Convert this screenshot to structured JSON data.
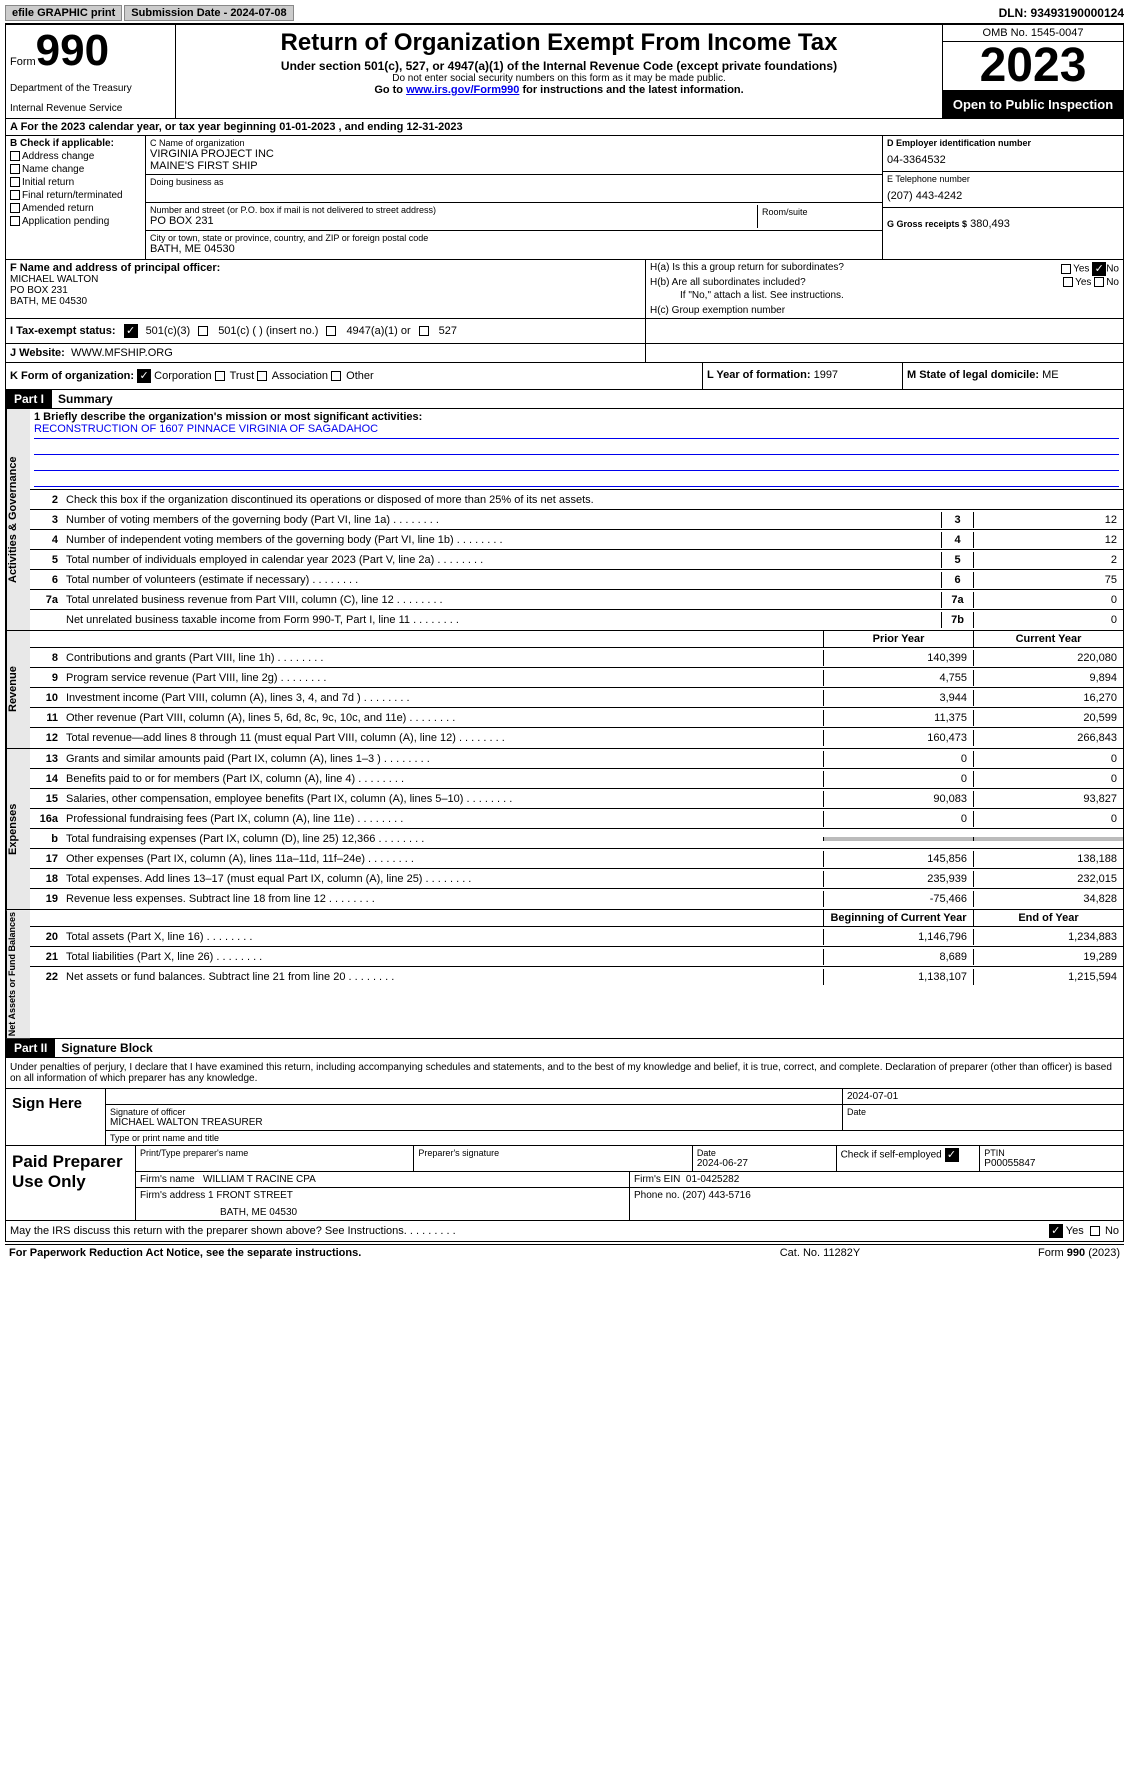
{
  "colors": {
    "black": "#000000",
    "white": "#ffffff",
    "link": "#0000ee",
    "shade": "#bbbbbb",
    "tab_bg": "#e8e8e8",
    "btn_bg": "#cccccc"
  },
  "top": {
    "efile": "efile GRAPHIC print",
    "sub_label": "Submission Date - 2024-07-08",
    "dln": "DLN: 93493190000124"
  },
  "header": {
    "form_word": "Form",
    "form_number": "990",
    "dept": "Department of the Treasury",
    "irs": "Internal Revenue Service",
    "title": "Return of Organization Exempt From Income Tax",
    "subtitle": "Under section 501(c), 527, or 4947(a)(1) of the Internal Revenue Code (except private foundations)",
    "note1": "Do not enter social security numbers on this form as it may be made public.",
    "note2_pre": "Go to ",
    "note2_link": "www.irs.gov/Form990",
    "note2_post": " for instructions and the latest information.",
    "omb": "OMB No. 1545-0047",
    "year": "2023",
    "open": "Open to Public Inspection"
  },
  "rowA": "A  For the 2023 calendar year, or tax year beginning 01-01-2023   , and ending 12-31-2023",
  "boxB": {
    "label": "B Check if applicable:",
    "items": [
      "Address change",
      "Name change",
      "Initial return",
      "Final return/terminated",
      "Amended return",
      "Application pending"
    ]
  },
  "boxC": {
    "name_lbl": "C Name of organization",
    "name1": "VIRGINIA PROJECT INC",
    "name2": "MAINE'S FIRST SHIP",
    "dba_lbl": "Doing business as",
    "addr_lbl": "Number and street (or P.O. box if mail is not delivered to street address)",
    "addr": "PO BOX 231",
    "room_lbl": "Room/suite",
    "city_lbl": "City or town, state or province, country, and ZIP or foreign postal code",
    "city": "BATH, ME  04530"
  },
  "boxD": {
    "ein_lbl": "D Employer identification number",
    "ein": "04-3364532",
    "phone_lbl": "E Telephone number",
    "phone": "(207) 443-4242",
    "gross_lbl": "G Gross receipts $",
    "gross": "380,493"
  },
  "boxF": {
    "lbl": "F  Name and address of principal officer:",
    "name": "MICHAEL WALTON",
    "addr1": "PO BOX 231",
    "addr2": "BATH, ME  04530"
  },
  "boxH": {
    "ha": "H(a)  Is this a group return for subordinates?",
    "hb": "H(b)  Are all subordinates included?",
    "hb_note": "If \"No,\" attach a list. See instructions.",
    "hc": "H(c)  Group exemption number",
    "yes": "Yes",
    "no": "No"
  },
  "rowI": {
    "lbl": "I   Tax-exempt status:",
    "opts": [
      "501(c)(3)",
      "501(c) (  ) (insert no.)",
      "4947(a)(1) or",
      "527"
    ]
  },
  "rowJ": {
    "lbl": "J   Website:",
    "val": "WWW.MFSHIP.ORG"
  },
  "rowK": {
    "lbl": "K Form of organization:",
    "opts": [
      "Corporation",
      "Trust",
      "Association",
      "Other"
    ],
    "year_lbl": "L Year of formation:",
    "year": "1997",
    "state_lbl": "M State of legal domicile:",
    "state": "ME"
  },
  "partI": {
    "num": "Part I",
    "title": "Summary"
  },
  "mission": {
    "lbl": "1   Briefly describe the organization's mission or most significant activities:",
    "text": "RECONSTRUCTION OF 1607 PINNACE VIRGINIA OF SAGADAHOC"
  },
  "gov": {
    "tab": "Activities & Governance",
    "line2": "Check this box        if the organization discontinued its operations or disposed of more than 25% of its net assets.",
    "rows": [
      {
        "n": "3",
        "d": "Number of voting members of the governing body (Part VI, line 1a)",
        "b": "3",
        "v": "12"
      },
      {
        "n": "4",
        "d": "Number of independent voting members of the governing body (Part VI, line 1b)",
        "b": "4",
        "v": "12"
      },
      {
        "n": "5",
        "d": "Total number of individuals employed in calendar year 2023 (Part V, line 2a)",
        "b": "5",
        "v": "2"
      },
      {
        "n": "6",
        "d": "Total number of volunteers (estimate if necessary)",
        "b": "6",
        "v": "75"
      },
      {
        "n": "7a",
        "d": "Total unrelated business revenue from Part VIII, column (C), line 12",
        "b": "7a",
        "v": "0"
      },
      {
        "n": "",
        "d": "Net unrelated business taxable income from Form 990-T, Part I, line 11",
        "b": "7b",
        "v": "0"
      }
    ]
  },
  "rev": {
    "tab": "Revenue",
    "hdr_prior": "Prior Year",
    "hdr_curr": "Current Year",
    "rows": [
      {
        "n": "8",
        "d": "Contributions and grants (Part VIII, line 1h)",
        "p": "140,399",
        "c": "220,080"
      },
      {
        "n": "9",
        "d": "Program service revenue (Part VIII, line 2g)",
        "p": "4,755",
        "c": "9,894"
      },
      {
        "n": "10",
        "d": "Investment income (Part VIII, column (A), lines 3, 4, and 7d )",
        "p": "3,944",
        "c": "16,270"
      },
      {
        "n": "11",
        "d": "Other revenue (Part VIII, column (A), lines 5, 6d, 8c, 9c, 10c, and 11e)",
        "p": "11,375",
        "c": "20,599"
      },
      {
        "n": "12",
        "d": "Total revenue—add lines 8 through 11 (must equal Part VIII, column (A), line 12)",
        "p": "160,473",
        "c": "266,843"
      }
    ]
  },
  "exp": {
    "tab": "Expenses",
    "rows": [
      {
        "n": "13",
        "d": "Grants and similar amounts paid (Part IX, column (A), lines 1–3 )",
        "p": "0",
        "c": "0"
      },
      {
        "n": "14",
        "d": "Benefits paid to or for members (Part IX, column (A), line 4)",
        "p": "0",
        "c": "0"
      },
      {
        "n": "15",
        "d": "Salaries, other compensation, employee benefits (Part IX, column (A), lines 5–10)",
        "p": "90,083",
        "c": "93,827"
      },
      {
        "n": "16a",
        "d": "Professional fundraising fees (Part IX, column (A), line 11e)",
        "p": "0",
        "c": "0"
      },
      {
        "n": "b",
        "d": "Total fundraising expenses (Part IX, column (D), line 25) 12,366",
        "p": "",
        "c": "",
        "shade": true
      },
      {
        "n": "17",
        "d": "Other expenses (Part IX, column (A), lines 11a–11d, 11f–24e)",
        "p": "145,856",
        "c": "138,188"
      },
      {
        "n": "18",
        "d": "Total expenses. Add lines 13–17 (must equal Part IX, column (A), line 25)",
        "p": "235,939",
        "c": "232,015"
      },
      {
        "n": "19",
        "d": "Revenue less expenses. Subtract line 18 from line 12",
        "p": "-75,466",
        "c": "34,828"
      }
    ]
  },
  "net": {
    "tab": "Net Assets or Fund Balances",
    "hdr_beg": "Beginning of Current Year",
    "hdr_end": "End of Year",
    "rows": [
      {
        "n": "20",
        "d": "Total assets (Part X, line 16)",
        "p": "1,146,796",
        "c": "1,234,883"
      },
      {
        "n": "21",
        "d": "Total liabilities (Part X, line 26)",
        "p": "8,689",
        "c": "19,289"
      },
      {
        "n": "22",
        "d": "Net assets or fund balances. Subtract line 21 from line 20",
        "p": "1,138,107",
        "c": "1,215,594"
      }
    ]
  },
  "partII": {
    "num": "Part II",
    "title": "Signature Block"
  },
  "sig": {
    "intro": "Under penalties of perjury, I declare that I have examined this return, including accompanying schedules and statements, and to the best of my knowledge and belief, it is true, correct, and complete. Declaration of preparer (other than officer) is based on all information of which preparer has any knowledge.",
    "here": "Sign Here",
    "date": "2024-07-01",
    "sig_lbl": "Signature of officer",
    "name": "MICHAEL WALTON  TREASURER",
    "name_lbl": "Type or print name and title",
    "date_lbl": "Date"
  },
  "prep": {
    "label": "Paid Preparer Use Only",
    "name_lbl": "Print/Type preparer's name",
    "sig_lbl": "Preparer's signature",
    "date_lbl": "Date",
    "date": "2024-06-27",
    "check_lbl": "Check         if self-employed",
    "ptin_lbl": "PTIN",
    "ptin": "P00055847",
    "firm_lbl": "Firm's name",
    "firm": "WILLIAM T RACINE CPA",
    "ein_lbl": "Firm's EIN",
    "ein": "01-0425282",
    "addr_lbl": "Firm's address",
    "addr1": "1 FRONT STREET",
    "addr2": "BATH, ME  04530",
    "phone_lbl": "Phone no.",
    "phone": "(207) 443-5716"
  },
  "discuss": {
    "text": "May the IRS discuss this return with the preparer shown above? See Instructions.",
    "yes": "Yes",
    "no": "No"
  },
  "footer": {
    "pra": "For Paperwork Reduction Act Notice, see the separate instructions.",
    "cat": "Cat. No. 11282Y",
    "form": "Form 990 (2023)"
  }
}
